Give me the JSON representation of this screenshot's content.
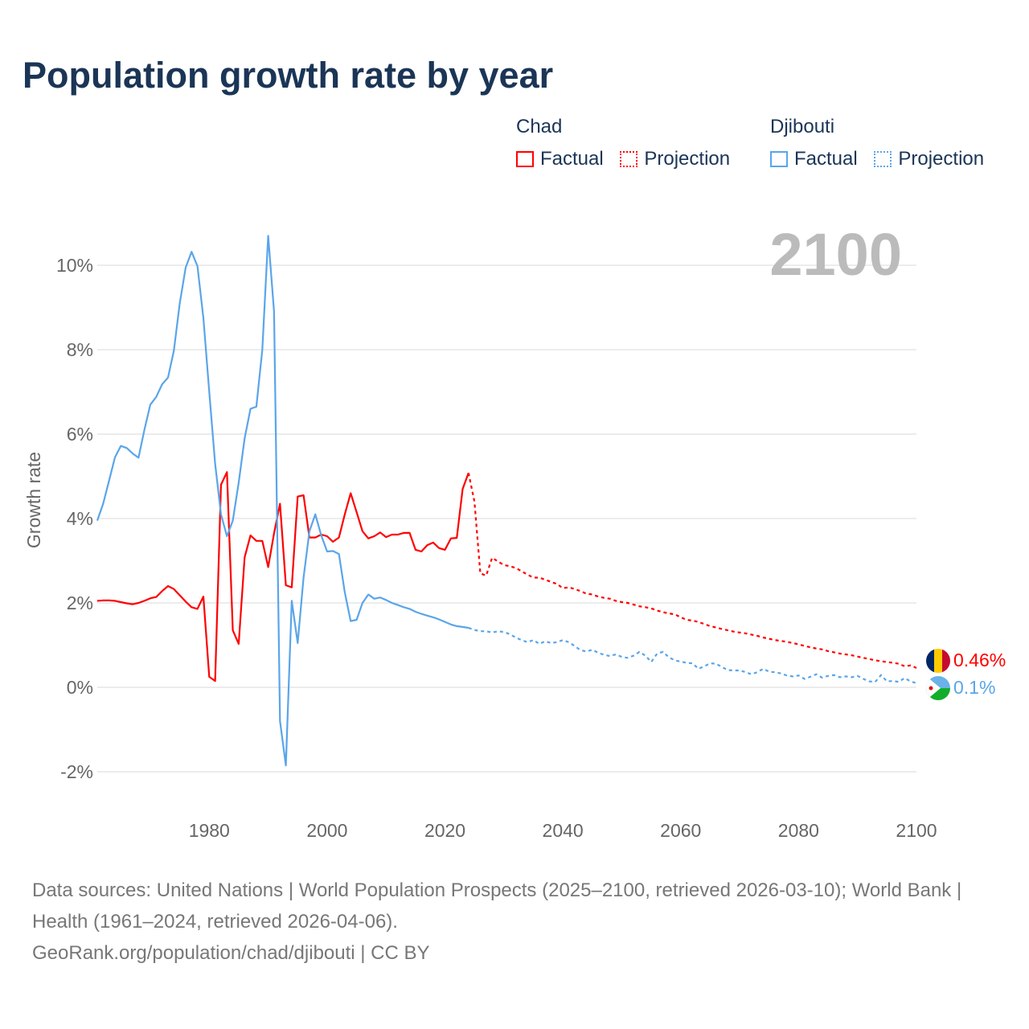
{
  "title": "Population growth rate by year",
  "legend": {
    "groups": [
      {
        "name": "Chad",
        "factual": "Factual",
        "projection": "Projection",
        "color": "#ff0000"
      },
      {
        "name": "Djibouti",
        "factual": "Factual",
        "projection": "Projection",
        "color": "#5aa5ea"
      }
    ]
  },
  "chart_data": {
    "type": "line",
    "title": "Population growth rate by year",
    "xlabel": "",
    "ylabel": "Growth rate",
    "xlim": [
      1961,
      2100
    ],
    "ylim": [
      -2.8,
      11
    ],
    "yticks": [
      -2,
      0,
      2,
      4,
      6,
      8,
      10
    ],
    "ytick_labels": [
      "-2%",
      "0%",
      "2%",
      "4%",
      "6%",
      "8%",
      "10%"
    ],
    "xticks": [
      1980,
      2000,
      2020,
      2040,
      2060,
      2080,
      2100
    ],
    "xtick_labels": [
      "1980",
      "2000",
      "2020",
      "2040",
      "2060",
      "2080",
      "2100"
    ],
    "grid": true,
    "year_label": "2100",
    "series": [
      {
        "name": "Chad",
        "color": "#ff0000",
        "end_label": "0.46%",
        "factual_start": 1961,
        "factual": [
          2.05,
          2.06,
          2.06,
          2.05,
          2.02,
          1.99,
          1.97,
          2.0,
          2.05,
          2.11,
          2.14,
          2.28,
          2.4,
          2.33,
          2.18,
          2.03,
          1.9,
          1.86,
          2.15,
          0.25,
          0.15,
          4.8,
          5.1,
          1.35,
          1.03,
          3.08,
          3.6,
          3.47,
          3.47,
          2.85,
          3.65,
          4.35,
          2.42,
          2.37,
          4.52,
          4.55,
          3.55,
          3.55,
          3.62,
          3.58,
          3.45,
          3.55,
          4.1,
          4.6,
          4.15,
          3.7,
          3.53,
          3.58,
          3.67,
          3.56,
          3.62,
          3.62,
          3.66,
          3.66,
          3.26,
          3.22,
          3.37,
          3.43,
          3.3,
          3.26,
          3.53,
          3.54,
          4.7,
          5.08
        ],
        "projection_start": 2025,
        "projection": [
          4.4,
          2.7,
          2.65,
          3.07,
          2.98,
          2.9,
          2.87,
          2.83,
          2.75,
          2.67,
          2.6,
          2.6,
          2.55,
          2.5,
          2.45,
          2.35,
          2.37,
          2.33,
          2.28,
          2.22,
          2.2,
          2.15,
          2.12,
          2.1,
          2.05,
          2.02,
          2.0,
          1.96,
          1.92,
          1.9,
          1.87,
          1.82,
          1.78,
          1.75,
          1.73,
          1.66,
          1.6,
          1.58,
          1.55,
          1.5,
          1.45,
          1.42,
          1.38,
          1.35,
          1.32,
          1.3,
          1.28,
          1.25,
          1.22,
          1.18,
          1.15,
          1.12,
          1.1,
          1.08,
          1.05,
          1.02,
          0.98,
          0.95,
          0.92,
          0.9,
          0.86,
          0.83,
          0.8,
          0.78,
          0.76,
          0.73,
          0.7,
          0.67,
          0.64,
          0.62,
          0.6,
          0.58,
          0.56,
          0.5,
          0.52,
          0.46
        ]
      },
      {
        "name": "Djibouti",
        "color": "#5aa5ea",
        "end_label": "0.1%",
        "factual_start": 1961,
        "factual": [
          3.95,
          4.35,
          4.9,
          5.45,
          5.72,
          5.67,
          5.54,
          5.44,
          6.1,
          6.7,
          6.88,
          7.18,
          7.34,
          7.98,
          9.1,
          9.95,
          10.32,
          9.98,
          8.75,
          7.0,
          5.3,
          4.1,
          3.58,
          3.95,
          4.85,
          5.9,
          6.6,
          6.65,
          8.0,
          10.7,
          8.9,
          -0.8,
          -1.85,
          2.05,
          1.05,
          2.6,
          3.7,
          4.1,
          3.6,
          3.22,
          3.23,
          3.16,
          2.25,
          1.57,
          1.6,
          2.0,
          2.2,
          2.1,
          2.13,
          2.07,
          2.0,
          1.95,
          1.9,
          1.86,
          1.79,
          1.74,
          1.7,
          1.66,
          1.61,
          1.55,
          1.49,
          1.45,
          1.43,
          1.41
        ],
        "projection_start": 2025,
        "projection": [
          1.36,
          1.33,
          1.33,
          1.3,
          1.33,
          1.31,
          1.26,
          1.18,
          1.12,
          1.07,
          1.12,
          1.03,
          1.09,
          1.05,
          1.07,
          1.12,
          1.07,
          0.98,
          0.88,
          0.85,
          0.89,
          0.82,
          0.77,
          0.74,
          0.78,
          0.72,
          0.7,
          0.75,
          0.84,
          0.75,
          0.6,
          0.8,
          0.84,
          0.71,
          0.64,
          0.61,
          0.58,
          0.57,
          0.44,
          0.5,
          0.57,
          0.56,
          0.48,
          0.41,
          0.4,
          0.4,
          0.36,
          0.31,
          0.36,
          0.44,
          0.37,
          0.36,
          0.33,
          0.28,
          0.26,
          0.28,
          0.2,
          0.25,
          0.31,
          0.23,
          0.27,
          0.29,
          0.24,
          0.26,
          0.24,
          0.27,
          0.2,
          0.14,
          0.13,
          0.29,
          0.14,
          0.15,
          0.13,
          0.22,
          0.14,
          0.1
        ]
      }
    ]
  },
  "footer": {
    "sources": "Data sources: United Nations | World Population Prospects (2025–2100, retrieved 2026-03-10); World Bank | Health (1961–2024, retrieved 2026-04-06).",
    "credit": "GeoRank.org/population/chad/djibouti | CC BY"
  }
}
